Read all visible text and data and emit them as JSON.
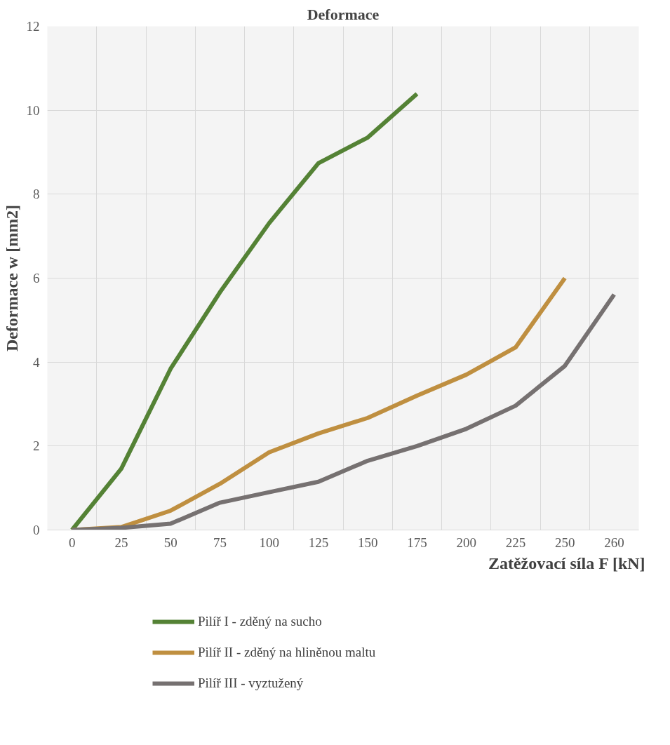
{
  "chart_data": {
    "type": "line",
    "title": "Deformace",
    "xlabel": "Zatěžovací síla F [kN]",
    "ylabel": "Deformace w [mm2]",
    "categories": [
      "0",
      "25",
      "50",
      "75",
      "100",
      "125",
      "150",
      "175",
      "200",
      "225",
      "250",
      "260"
    ],
    "series": [
      {
        "name": "Pilíř I - zděný na sucho",
        "color": "#548235",
        "values": [
          0,
          1.46,
          3.84,
          5.66,
          7.31,
          8.74,
          9.35,
          10.39,
          null,
          null,
          null,
          null
        ]
      },
      {
        "name": "Pilíř II - zděný na hliněnou maltu",
        "color": "#bf8f40",
        "values": [
          0,
          0.07,
          0.46,
          1.1,
          1.85,
          2.3,
          2.67,
          3.2,
          3.7,
          4.35,
          6.0,
          null
        ]
      },
      {
        "name": "Pilíř III - vyztužený",
        "color": "#767171",
        "values": [
          0,
          0.05,
          0.15,
          0.65,
          0.9,
          1.15,
          1.65,
          2.0,
          2.41,
          2.96,
          3.91,
          5.61
        ]
      }
    ],
    "ylim": [
      0,
      12
    ],
    "yticks": [
      0,
      2,
      4,
      6,
      8,
      10,
      12
    ],
    "grid": true,
    "legend": "bottom",
    "marker": "none",
    "line_style": "solid"
  }
}
